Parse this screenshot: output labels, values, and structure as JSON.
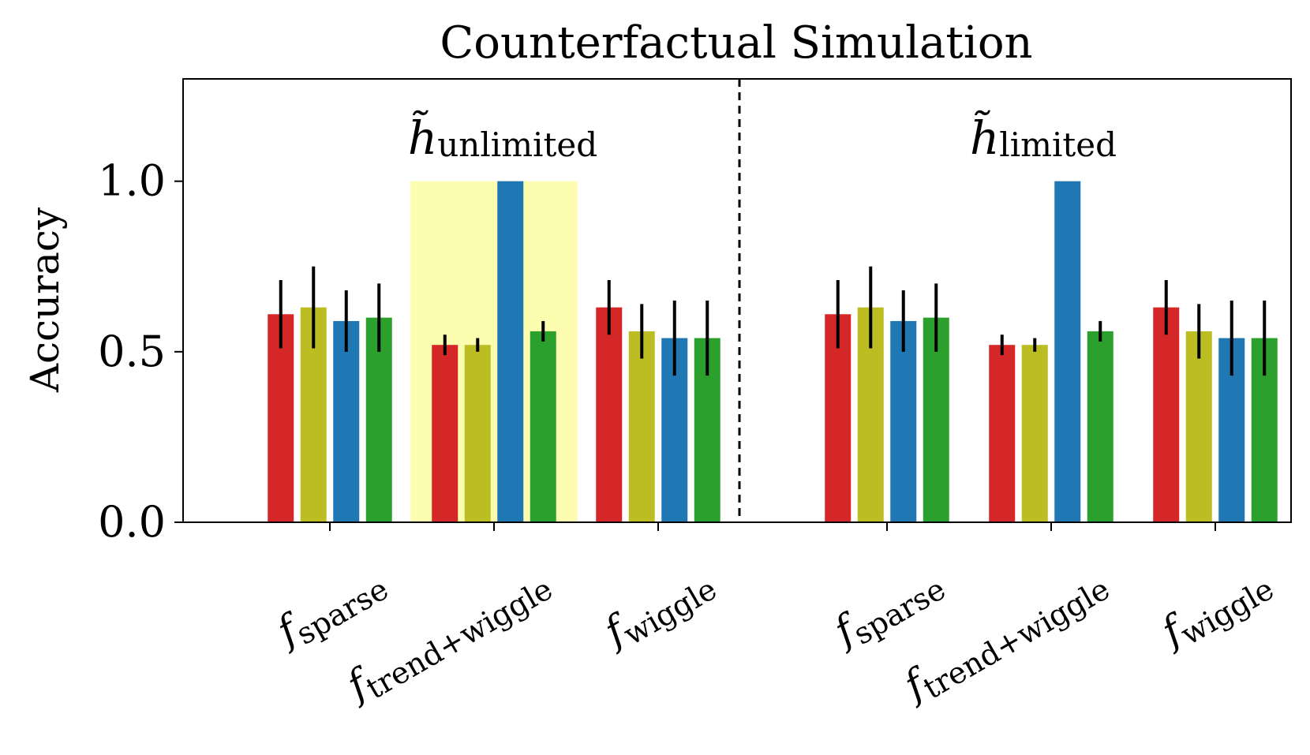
{
  "chart_data": {
    "type": "bar",
    "title": "Counterfactual Simulation",
    "ylabel": "Accuracy",
    "xlabel": "",
    "ylim": [
      0,
      1.3
    ],
    "yticks": [
      {
        "value": 0.0,
        "label": "0.0"
      },
      {
        "value": 0.5,
        "label": "0.5"
      },
      {
        "value": 1.0,
        "label": "1.0"
      }
    ],
    "series_colors": [
      "#d62728",
      "#bcbd22",
      "#1f77b4",
      "#2ca02c"
    ],
    "highlight_color": "#fdfdb0",
    "divider": "dashed",
    "panels": [
      {
        "name": "h̃",
        "subscript": "unlimited",
        "groups": [
          {
            "f": "f",
            "sub": "sparse",
            "values": [
              0.61,
              0.63,
              0.59,
              0.6
            ],
            "errors": [
              0.1,
              0.12,
              0.09,
              0.1
            ],
            "highlight": false
          },
          {
            "f": "f",
            "sub": "trend+wiggle",
            "values": [
              0.52,
              0.52,
              1.0,
              0.56
            ],
            "errors": [
              0.03,
              0.02,
              0.0,
              0.03
            ],
            "highlight": true
          },
          {
            "f": "f",
            "sub": "wiggle",
            "values": [
              0.63,
              0.56,
              0.54,
              0.54
            ],
            "errors": [
              0.08,
              0.08,
              0.11,
              0.11
            ],
            "highlight": false
          }
        ]
      },
      {
        "name": "h̃",
        "subscript": "limited",
        "groups": [
          {
            "f": "f",
            "sub": "sparse",
            "values": [
              0.61,
              0.63,
              0.59,
              0.6
            ],
            "errors": [
              0.1,
              0.12,
              0.09,
              0.1
            ],
            "highlight": false
          },
          {
            "f": "f",
            "sub": "trend+wiggle",
            "values": [
              0.52,
              0.52,
              1.0,
              0.56
            ],
            "errors": [
              0.03,
              0.02,
              0.0,
              0.03
            ],
            "highlight": false
          },
          {
            "f": "f",
            "sub": "wiggle",
            "values": [
              0.63,
              0.56,
              0.54,
              0.54
            ],
            "errors": [
              0.08,
              0.08,
              0.11,
              0.11
            ],
            "highlight": false
          }
        ]
      }
    ]
  }
}
